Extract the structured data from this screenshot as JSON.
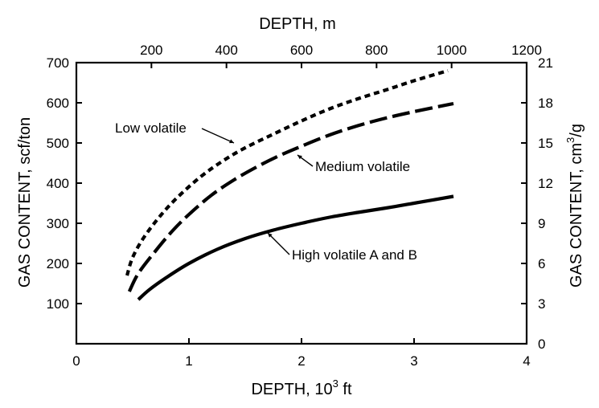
{
  "chart_data": {
    "type": "line",
    "title": "",
    "xlabel_bottom": "DEPTH, 10",
    "xlabel_bottom_sup": "3",
    "xlabel_bottom_unit": " ft",
    "xlabel_top": "DEPTH, m",
    "ylabel_left": "GAS CONTENT, scf/ton",
    "ylabel_right": "GAS CONTENT,  cm",
    "ylabel_right_sup": "3",
    "ylabel_right_unit": "/g",
    "xlim": [
      0,
      4
    ],
    "ylim": [
      0,
      700
    ],
    "x_ticks": [
      "0",
      "1",
      "2",
      "3",
      "4"
    ],
    "y_ticks": [
      "100",
      "200",
      "300",
      "400",
      "500",
      "600",
      "700"
    ],
    "top_xlim": [
      0,
      1200
    ],
    "top_ticks": [
      "200",
      "400",
      "600",
      "800",
      "1000",
      "1200"
    ],
    "right_ylim": [
      0,
      21
    ],
    "right_ticks": [
      "0",
      "3",
      "6",
      "9",
      "12",
      "15",
      "18",
      "21"
    ],
    "series": [
      {
        "name": "Low volatile",
        "style": "dotted",
        "x": [
          0.45,
          0.5,
          0.6,
          0.75,
          0.9,
          1.1,
          1.3,
          1.5,
          1.75,
          2.0,
          2.25,
          2.5,
          2.75,
          3.0,
          3.3
        ],
        "y": [
          170,
          215,
          265,
          320,
          365,
          415,
          455,
          488,
          522,
          555,
          585,
          610,
          632,
          655,
          680
        ]
      },
      {
        "name": "Medium volatile",
        "style": "dashed",
        "x": [
          0.47,
          0.55,
          0.7,
          0.85,
          1.0,
          1.2,
          1.4,
          1.6,
          1.8,
          2.0,
          2.25,
          2.5,
          2.75,
          3.0,
          3.35
        ],
        "y": [
          130,
          175,
          230,
          280,
          322,
          370,
          408,
          440,
          468,
          492,
          520,
          543,
          562,
          578,
          598
        ]
      },
      {
        "name": "High volatile A and B",
        "style": "solid",
        "x": [
          0.55,
          0.65,
          0.8,
          1.0,
          1.25,
          1.5,
          1.75,
          2.0,
          2.25,
          2.5,
          2.75,
          3.0,
          3.35
        ],
        "y": [
          110,
          135,
          165,
          200,
          235,
          262,
          283,
          300,
          315,
          327,
          338,
          350,
          367
        ]
      }
    ],
    "annotations": [
      {
        "text": "Low volatile",
        "series": 0
      },
      {
        "text": "Medium volatile",
        "series": 1
      },
      {
        "text": "High volatile A and B",
        "series": 2
      }
    ],
    "grid": false,
    "legend": "none"
  }
}
